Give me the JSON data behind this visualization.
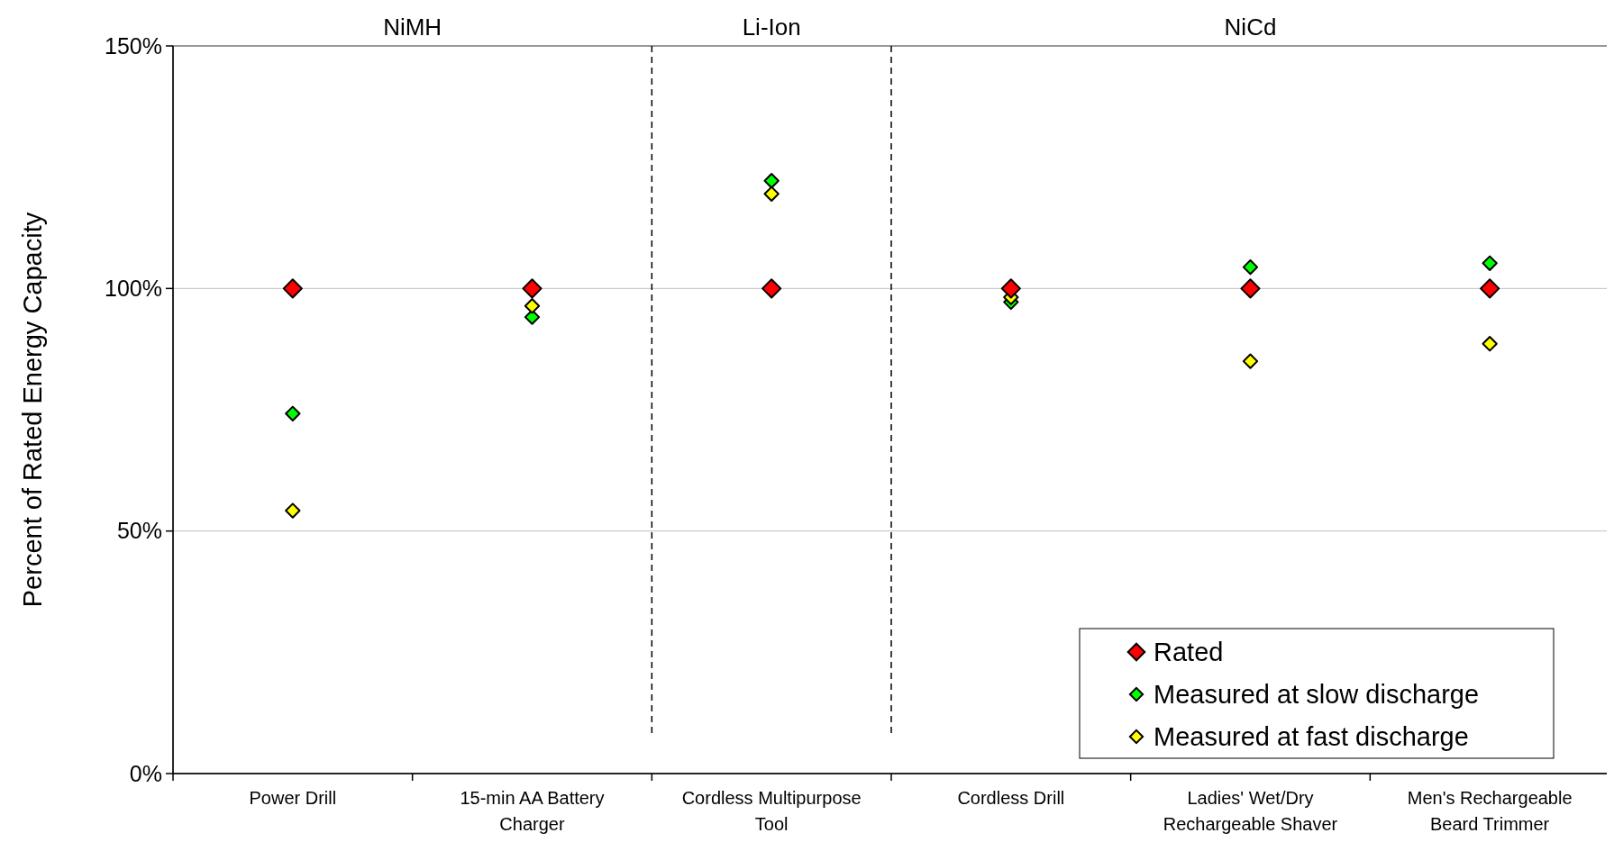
{
  "chart_data": {
    "type": "scatter",
    "ylabel": "Percent of Rated Energy Capacity",
    "categories": [
      "Power Drill",
      "15-min AA Battery Charger",
      "Cordless Multipurpose Tool",
      "Cordless Drill",
      "Ladies' Wet/Dry Rechargeable Shaver",
      "Men's Rechargeable Beard Trimmer"
    ],
    "series": [
      {
        "name": "Rated",
        "color": "#ff0000",
        "values": [
          100,
          100,
          100,
          100,
          100,
          100
        ]
      },
      {
        "name": "Measured at slow discharge",
        "color": "#00ff00",
        "values": [
          74.2,
          94.1,
          122.2,
          97.2,
          104.4,
          105.2
        ]
      },
      {
        "name": "Measured at fast discharge",
        "color": "#ffff00",
        "values": [
          54.2,
          96.4,
          119.5,
          98.2,
          85,
          88.6
        ]
      }
    ],
    "ylim": [
      0,
      150
    ],
    "yticks": [
      {
        "value": 0,
        "label": "0%"
      },
      {
        "value": 50,
        "label": "50%"
      },
      {
        "value": 100,
        "label": "100%"
      },
      {
        "value": 150,
        "label": "150%"
      }
    ],
    "grid": "y",
    "legend": "bottom right",
    "marker": "diamond",
    "annotations": [
      "NiMH",
      "Li-Ion",
      "NiCd"
    ]
  }
}
